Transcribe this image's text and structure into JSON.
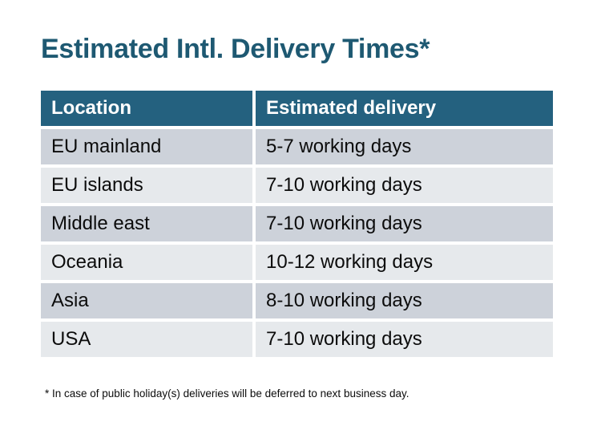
{
  "page": {
    "title": "Estimated Intl. Delivery Times*",
    "footnote": "* In case of public holiday(s) deliveries will be deferred to next business day."
  },
  "table": {
    "headers": [
      "Location",
      "Estimated delivery"
    ],
    "rows": [
      {
        "location": "EU mainland",
        "delivery": "5-7 working days"
      },
      {
        "location": "EU islands",
        "delivery": "7-10 working days"
      },
      {
        "location": "Middle east",
        "delivery": "7-10 working days"
      },
      {
        "location": "Oceania",
        "delivery": "10-12 working days"
      },
      {
        "location": "Asia",
        "delivery": "8-10 working days"
      },
      {
        "location": "USA",
        "delivery": "7-10 working days"
      }
    ]
  },
  "colors": {
    "title_text": "#1E5972",
    "header_bg": "#24617F",
    "header_text": "#FFFFFF",
    "row_dark_bg": "#CDD2DA",
    "row_light_bg": "#E6E9EC",
    "cell_text": "#0C0C0C",
    "page_bg": "#FFFFFF"
  },
  "chart_data": {
    "type": "table",
    "title": "Estimated Intl. Delivery Times*",
    "columns": [
      "Location",
      "Estimated delivery"
    ],
    "rows": [
      [
        "EU mainland",
        "5-7 working days"
      ],
      [
        "EU islands",
        "7-10 working days"
      ],
      [
        "Middle east",
        "7-10 working days"
      ],
      [
        "Oceania",
        "10-12 working days"
      ],
      [
        "Asia",
        "8-10 working days"
      ],
      [
        "USA",
        "7-10 working days"
      ]
    ],
    "footnote": "* In case of public holiday(s) deliveries will be deferred to next business day."
  }
}
